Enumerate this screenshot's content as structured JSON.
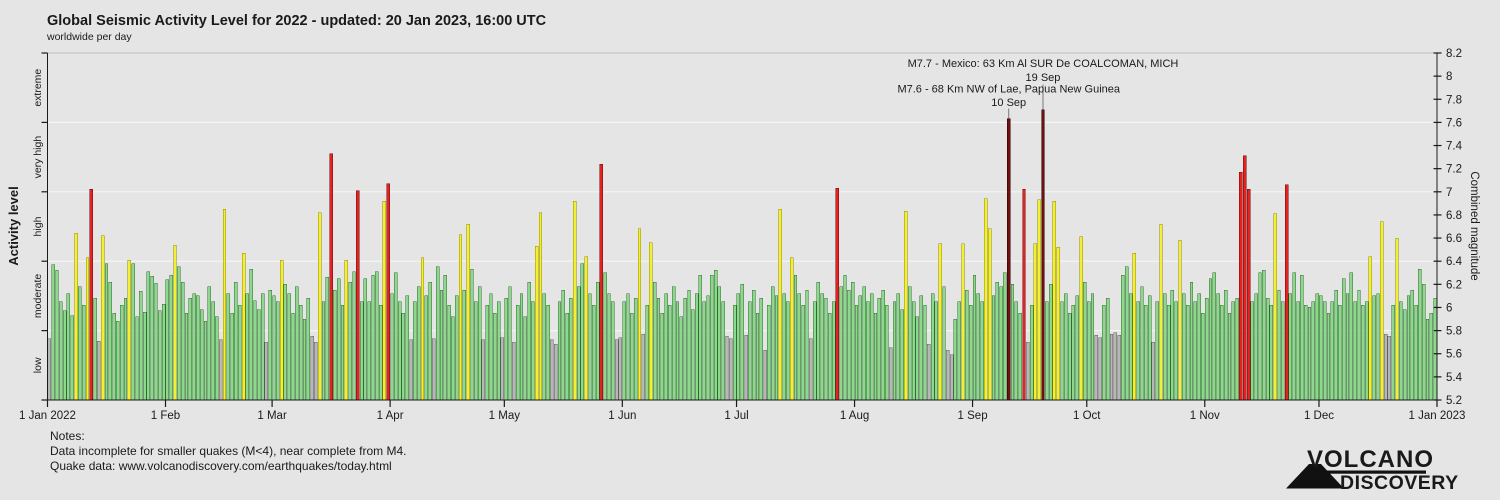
{
  "title": "Global Seismic Activity Level for 2022 - updated: 20 Jan 2023, 16:00 UTC",
  "subtitle": "worldwide per day",
  "left_axis": {
    "label": "Activity level",
    "categories": [
      "low",
      "moderate",
      "high",
      "very high",
      "extreme"
    ]
  },
  "right_axis": {
    "label": "Combined magnitude",
    "min": 5.2,
    "max": 8.2,
    "tick_step": 0.2
  },
  "x_axis": {
    "ticks": [
      {
        "label": "1 Jan 2022",
        "day": 0
      },
      {
        "label": "1 Feb",
        "day": 31
      },
      {
        "label": "1 Mar",
        "day": 59
      },
      {
        "label": "1 Apr",
        "day": 90
      },
      {
        "label": "1 May",
        "day": 120
      },
      {
        "label": "1 Jun",
        "day": 151
      },
      {
        "label": "1 Jul",
        "day": 181
      },
      {
        "label": "1 Aug",
        "day": 212
      },
      {
        "label": "1 Sep",
        "day": 243
      },
      {
        "label": "1 Oct",
        "day": 273
      },
      {
        "label": "1 Nov",
        "day": 304
      },
      {
        "label": "1 Dec",
        "day": 334
      },
      {
        "label": "1 Jan 2023",
        "day": 365
      }
    ]
  },
  "annotations": [
    {
      "line1": "M7.7 - Mexico: 63 Km Al SUR De COALCOMAN, MICH",
      "line2": "19 Sep",
      "day_of_year": 262,
      "magnitude": 7.7
    },
    {
      "line1": "M7.6 - 68 Km NW of Lae, Papua New Guinea",
      "line2": "10 Sep",
      "day_of_year": 253,
      "magnitude": 7.6
    }
  ],
  "notes": {
    "heading": "Notes:",
    "line1": "Data incomplete for smaller quakes (M<4), near complete from M4.",
    "line2": "Quake data: www.volcanodiscovery.com/earthquakes/today.html"
  },
  "logo": {
    "word1": "VOLCANO",
    "word2": "DISCOVERY",
    "word1_color": "#111111",
    "word2_color": "#c81e1e"
  },
  "chart_data": {
    "type": "bar",
    "title": "Global Seismic Activity Level for 2022",
    "x_unit": "day of year 2022, 1 Jan - 31 Dec, one bar per day",
    "ylabel_left": "Activity level",
    "ylabel_right": "Combined magnitude",
    "ylim": [
      5.2,
      8.2
    ],
    "grid_values": [
      5.8,
      6.4,
      7.0,
      7.6
    ],
    "legend": "none",
    "bands": [
      {
        "name": "low",
        "min": 5.2,
        "max": 5.8,
        "fill": "#b7b7b7",
        "stroke": "#5f5f5f"
      },
      {
        "name": "moderate",
        "min": 5.8,
        "max": 6.4,
        "fill": "#8ed88e",
        "stroke": "#2e6b2e"
      },
      {
        "name": "high",
        "min": 6.4,
        "max": 7.0,
        "fill": "#f4ef35",
        "stroke": "#8e8e00"
      },
      {
        "name": "very high",
        "min": 7.0,
        "max": 7.6,
        "fill": "#e32222",
        "stroke": "#6d0a0a"
      },
      {
        "name": "extreme",
        "min": 7.6,
        "max": 8.2,
        "fill": "#701010",
        "stroke": "#240000"
      }
    ],
    "values": [
      5.73,
      6.37,
      6.32,
      6.05,
      5.97,
      6.12,
      5.93,
      6.64,
      6.18,
      6.02,
      6.43,
      7.02,
      6.08,
      5.71,
      6.62,
      6.38,
      6.22,
      5.95,
      5.88,
      6.02,
      6.08,
      6.41,
      6.38,
      5.92,
      6.14,
      5.96,
      6.31,
      6.27,
      6.21,
      5.97,
      6.03,
      6.24,
      6.28,
      6.54,
      6.35,
      6.22,
      5.95,
      6.08,
      6.12,
      6.1,
      5.98,
      5.88,
      6.18,
      6.05,
      5.92,
      5.72,
      6.85,
      6.12,
      5.95,
      6.22,
      6.02,
      6.47,
      6.12,
      6.33,
      6.06,
      5.98,
      6.12,
      5.7,
      6.15,
      6.1,
      6.05,
      6.41,
      6.2,
      6.12,
      5.95,
      6.18,
      6.02,
      5.9,
      6.08,
      5.75,
      5.7,
      6.82,
      6.05,
      6.26,
      7.33,
      6.15,
      6.25,
      6.02,
      6.41,
      6.22,
      6.31,
      7.01,
      6.05,
      6.25,
      6.05,
      6.28,
      6.31,
      6.02,
      6.92,
      7.07,
      6.12,
      6.3,
      6.05,
      5.95,
      6.1,
      5.72,
      6.05,
      6.18,
      6.43,
      6.1,
      6.22,
      5.73,
      6.35,
      6.15,
      6.28,
      6.02,
      5.92,
      6.1,
      6.63,
      6.15,
      6.72,
      6.33,
      6.05,
      6.18,
      5.72,
      6.02,
      6.12,
      5.95,
      6.05,
      5.74,
      6.08,
      6.18,
      5.7,
      6.02,
      6.12,
      5.92,
      6.22,
      6.05,
      6.53,
      6.82,
      6.12,
      6.02,
      5.72,
      5.68,
      6.05,
      6.15,
      5.95,
      6.08,
      6.92,
      6.18,
      6.38,
      6.44,
      6.12,
      6.02,
      6.22,
      7.24,
      6.3,
      6.12,
      6.05,
      5.72,
      5.74,
      6.05,
      6.12,
      5.95,
      6.08,
      6.68,
      5.77,
      6.02,
      6.56,
      6.22,
      6.08,
      5.95,
      6.12,
      6.02,
      6.18,
      6.05,
      5.92,
      6.08,
      6.15,
      5.98,
      6.12,
      6.28,
      6.05,
      6.1,
      6.28,
      6.32,
      6.18,
      6.05,
      5.75,
      5.73,
      6.02,
      6.12,
      6.2,
      5.76,
      6.05,
      6.15,
      5.95,
      6.08,
      5.63,
      6.02,
      6.18,
      6.1,
      6.85,
      6.12,
      6.05,
      6.43,
      6.28,
      6.12,
      6.02,
      6.15,
      5.73,
      6.05,
      6.22,
      6.12,
      6.08,
      5.95,
      6.05,
      7.03,
      6.18,
      6.28,
      6.15,
      6.22,
      6.02,
      6.1,
      6.18,
      6.05,
      6.12,
      5.95,
      6.08,
      6.15,
      6.02,
      5.65,
      6.05,
      6.12,
      5.98,
      6.83,
      6.18,
      6.05,
      5.92,
      6.1,
      6.02,
      5.68,
      6.12,
      6.05,
      6.55,
      6.18,
      5.63,
      5.59,
      5.9,
      6.05,
      6.55,
      6.15,
      6.02,
      6.28,
      6.12,
      6.05,
      6.94,
      6.68,
      6.1,
      6.22,
      6.18,
      6.3,
      7.63,
      6.2,
      6.05,
      5.95,
      7.02,
      5.7,
      6.02,
      6.55,
      6.93,
      7.71,
      6.05,
      6.2,
      6.92,
      6.52,
      6.05,
      6.12,
      5.95,
      6.02,
      6.1,
      6.61,
      6.22,
      6.05,
      6.12,
      5.76,
      5.74,
      6.02,
      6.08,
      5.77,
      5.78,
      5.76,
      6.28,
      6.35,
      6.12,
      6.47,
      6.05,
      6.18,
      6.02,
      6.1,
      5.7,
      6.05,
      6.72,
      6.12,
      6.02,
      6.15,
      6.05,
      6.58,
      6.12,
      6.02,
      6.22,
      6.05,
      6.12,
      5.95,
      6.08,
      6.25,
      6.3,
      6.12,
      6.02,
      6.15,
      5.95,
      6.05,
      6.08,
      7.17,
      7.31,
      7.02,
      6.05,
      6.12,
      6.3,
      6.32,
      6.08,
      6.02,
      6.81,
      6.15,
      6.05,
      7.06,
      6.12,
      6.3,
      6.05,
      6.28,
      6.02,
      6.0,
      6.05,
      6.12,
      6.1,
      6.05,
      5.95,
      6.05,
      6.15,
      6.02,
      6.25,
      6.12,
      6.3,
      6.05,
      6.15,
      6.02,
      6.05,
      6.44,
      6.1,
      6.12,
      6.74,
      5.77,
      5.75,
      6.02,
      6.6,
      6.05,
      5.98,
      6.1,
      6.15,
      6.02,
      6.33,
      6.2,
      5.9,
      5.95,
      6.08
    ]
  }
}
